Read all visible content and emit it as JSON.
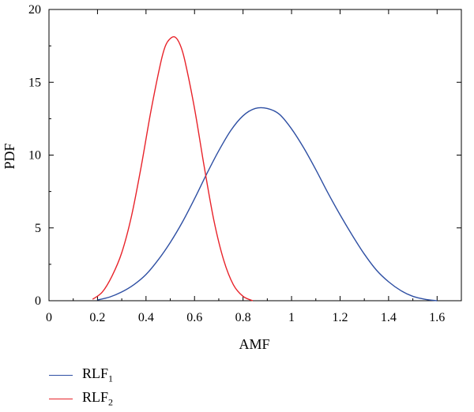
{
  "chart_data": {
    "type": "line",
    "xlabel": "AMF",
    "ylabel": "PDF",
    "xlim": [
      0,
      1.7
    ],
    "ylim": [
      0,
      20
    ],
    "xticks": [
      "0",
      "0.2",
      "0.4",
      "0.6",
      "0.8",
      "1",
      "1.2",
      "1.4",
      "1.6"
    ],
    "yticks": [
      "0",
      "5",
      "10",
      "15",
      "20"
    ],
    "legend_position": "bottom-left (below plot)",
    "series": [
      {
        "name": "RLF",
        "subscript": "1",
        "color": "#2e4fa3",
        "x": [
          0.2,
          0.25,
          0.3,
          0.35,
          0.4,
          0.45,
          0.5,
          0.55,
          0.6,
          0.65,
          0.7,
          0.75,
          0.8,
          0.85,
          0.9,
          0.95,
          1.0,
          1.05,
          1.1,
          1.15,
          1.2,
          1.25,
          1.3,
          1.35,
          1.4,
          1.45,
          1.5,
          1.55,
          1.6
        ],
        "y": [
          0.05,
          0.25,
          0.6,
          1.1,
          1.8,
          2.8,
          4.0,
          5.4,
          7.0,
          8.7,
          10.3,
          11.7,
          12.7,
          13.2,
          13.2,
          12.8,
          11.8,
          10.5,
          9.0,
          7.4,
          5.9,
          4.5,
          3.2,
          2.1,
          1.3,
          0.7,
          0.3,
          0.1,
          0.0
        ]
      },
      {
        "name": "RLF",
        "subscript": "2",
        "color": "#e8232a",
        "x": [
          0.18,
          0.22,
          0.26,
          0.3,
          0.34,
          0.38,
          0.42,
          0.46,
          0.48,
          0.5,
          0.52,
          0.54,
          0.56,
          0.6,
          0.64,
          0.68,
          0.72,
          0.76,
          0.8,
          0.84
        ],
        "y": [
          0.1,
          0.6,
          1.7,
          3.3,
          5.8,
          9.2,
          13.0,
          16.3,
          17.5,
          18.0,
          18.1,
          17.6,
          16.5,
          13.2,
          9.2,
          5.5,
          2.8,
          1.1,
          0.3,
          0.0
        ]
      }
    ]
  }
}
